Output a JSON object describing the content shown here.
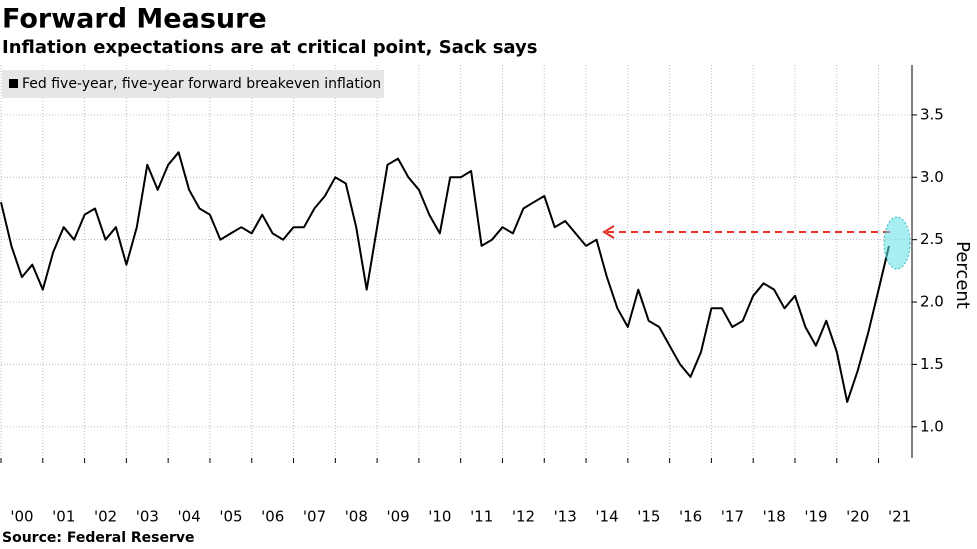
{
  "chart_data": {
    "type": "line",
    "title": "Forward Measure",
    "subtitle": "Inflation expectations are at critical point, Sack says",
    "y_label": "Percent",
    "source": "Source: Federal Reserve",
    "x": [
      2000.0,
      2000.25,
      2000.5,
      2000.75,
      2001.0,
      2001.25,
      2001.5,
      2001.75,
      2002.0,
      2002.25,
      2002.5,
      2002.75,
      2003.0,
      2003.25,
      2003.5,
      2003.75,
      2004.0,
      2004.25,
      2004.5,
      2004.75,
      2005.0,
      2005.25,
      2005.5,
      2005.75,
      2006.0,
      2006.25,
      2006.5,
      2006.75,
      2007.0,
      2007.25,
      2007.5,
      2007.75,
      2008.0,
      2008.25,
      2008.5,
      2008.75,
      2009.0,
      2009.25,
      2009.5,
      2009.75,
      2010.0,
      2010.25,
      2010.5,
      2010.75,
      2011.0,
      2011.25,
      2011.5,
      2011.75,
      2012.0,
      2012.25,
      2012.5,
      2012.75,
      2013.0,
      2013.25,
      2013.5,
      2013.75,
      2014.0,
      2014.25,
      2014.5,
      2014.75,
      2015.0,
      2015.25,
      2015.5,
      2015.75,
      2016.0,
      2016.25,
      2016.5,
      2016.75,
      2017.0,
      2017.25,
      2017.5,
      2017.75,
      2018.0,
      2018.25,
      2018.5,
      2018.75,
      2019.0,
      2019.25,
      2019.5,
      2019.75,
      2020.0,
      2020.25,
      2020.5,
      2020.75,
      2021.0,
      2021.25
    ],
    "series": [
      {
        "name": "Fed five-year, five-year forward breakeven inflation",
        "color": "#000000",
        "values": [
          2.8,
          2.45,
          2.2,
          2.3,
          2.1,
          2.4,
          2.6,
          2.5,
          2.7,
          2.75,
          2.5,
          2.6,
          2.3,
          2.6,
          3.1,
          2.9,
          3.1,
          3.2,
          2.9,
          2.75,
          2.7,
          2.5,
          2.55,
          2.6,
          2.55,
          2.7,
          2.55,
          2.5,
          2.6,
          2.6,
          2.75,
          2.85,
          3.0,
          2.95,
          2.6,
          2.1,
          2.6,
          3.1,
          3.15,
          3.0,
          2.9,
          2.7,
          2.55,
          3.0,
          3.0,
          3.05,
          2.45,
          2.5,
          2.6,
          2.55,
          2.75,
          2.8,
          2.85,
          2.6,
          2.65,
          2.55,
          2.45,
          2.5,
          2.2,
          1.95,
          1.8,
          2.1,
          1.85,
          1.8,
          1.65,
          1.5,
          1.4,
          1.6,
          1.95,
          1.95,
          1.8,
          1.85,
          2.05,
          2.15,
          2.1,
          1.95,
          2.05,
          1.8,
          1.65,
          1.85,
          1.6,
          1.2,
          1.45,
          1.75,
          2.1,
          2.45
        ]
      }
    ],
    "xlim": [
      2000,
      2021.8
    ],
    "xticks": [
      {
        "value": 2000,
        "label": "'00"
      },
      {
        "value": 2001,
        "label": "'01"
      },
      {
        "value": 2002,
        "label": "'02"
      },
      {
        "value": 2003,
        "label": "'03"
      },
      {
        "value": 2004,
        "label": "'04"
      },
      {
        "value": 2005,
        "label": "'05"
      },
      {
        "value": 2006,
        "label": "'06"
      },
      {
        "value": 2007,
        "label": "'07"
      },
      {
        "value": 2008,
        "label": "'08"
      },
      {
        "value": 2009,
        "label": "'09"
      },
      {
        "value": 2010,
        "label": "'10"
      },
      {
        "value": 2011,
        "label": "'11"
      },
      {
        "value": 2012,
        "label": "'12"
      },
      {
        "value": 2013,
        "label": "'13"
      },
      {
        "value": 2014,
        "label": "'14"
      },
      {
        "value": 2015,
        "label": "'15"
      },
      {
        "value": 2016,
        "label": "'16"
      },
      {
        "value": 2017,
        "label": "'17"
      },
      {
        "value": 2018,
        "label": "'18"
      },
      {
        "value": 2019,
        "label": "'19"
      },
      {
        "value": 2020,
        "label": "'20"
      },
      {
        "value": 2021,
        "label": "'21"
      }
    ],
    "ylim": [
      0.75,
      3.9
    ],
    "yticks": [
      {
        "value": 1,
        "label": "1.0"
      },
      1.5,
      {
        "value": 2,
        "label": "2.0"
      },
      2.5,
      {
        "value": 3,
        "label": "3.0"
      },
      3.5
    ],
    "grid": true,
    "legend": "top-left"
  }
}
